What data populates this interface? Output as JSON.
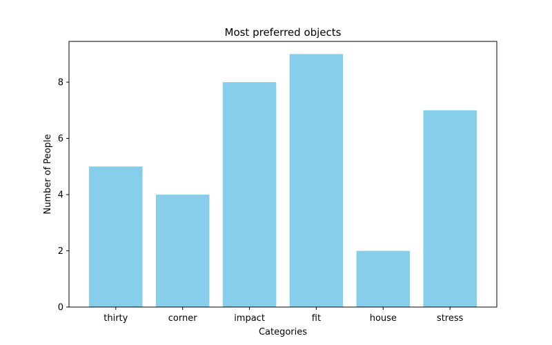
{
  "chart_data": {
    "type": "bar",
    "title": "Most preferred objects",
    "xlabel": "Categories",
    "ylabel": "Number of People",
    "categories": [
      "thirty",
      "corner",
      "impact",
      "fit",
      "house",
      "stress"
    ],
    "values": [
      5,
      4,
      8,
      9,
      2,
      7
    ],
    "ylim": [
      0,
      9.45
    ],
    "yticks": [
      0,
      2,
      4,
      6,
      8
    ],
    "ytick_labels": [
      "0",
      "2",
      "4",
      "6",
      "8"
    ],
    "bar_color": "#87ceeb",
    "grid": false,
    "legend": "none"
  }
}
